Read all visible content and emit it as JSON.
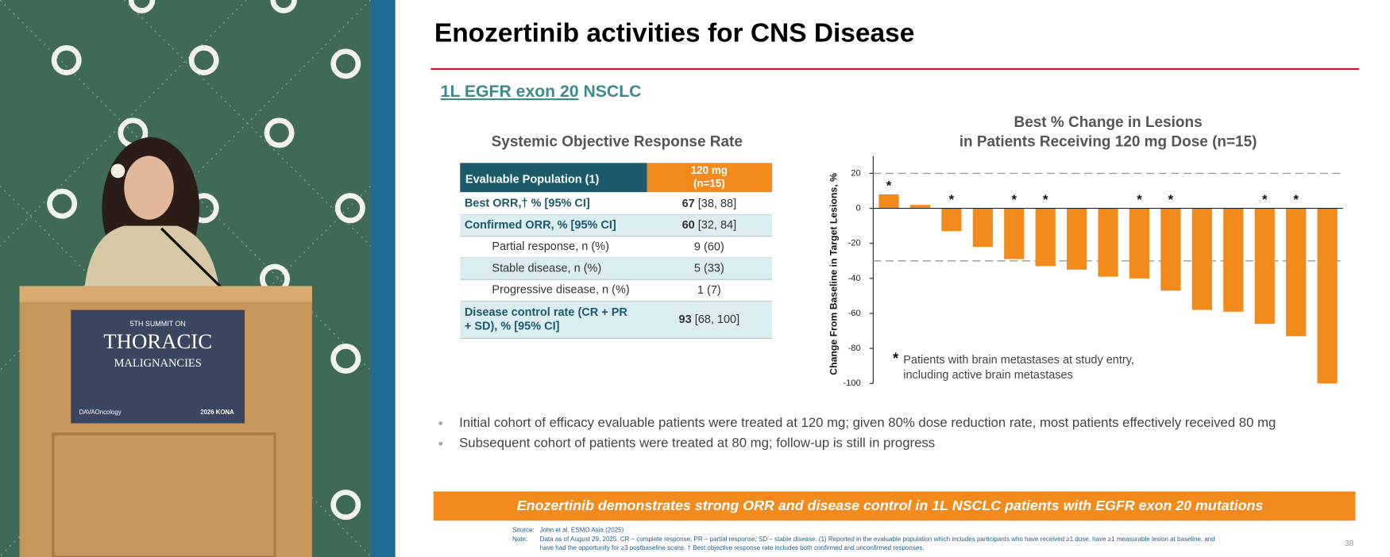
{
  "video": {
    "podium_sign": [
      "5TH SUMMIT ON",
      "THORACIC",
      "MALIGNANCIES",
      "DAVAOncology",
      "2026 KONA"
    ]
  },
  "slide": {
    "title": "Enozertinib activities for CNS Disease",
    "subtitle_link": "1L EGFR exon 20",
    "subtitle_rest": " NSCLC",
    "table": {
      "title": "Systemic Objective Response Rate",
      "header": [
        "Evaluable Population (1)",
        "120 mg",
        "(n=15)"
      ],
      "rows": [
        {
          "label": "Best ORR,† % [95% CI]",
          "value": "67",
          "ci": " [38, 88]"
        },
        {
          "label": "Confirmed ORR, % [95% CI]",
          "value": "60",
          "ci": " [32, 84]"
        },
        {
          "label": "Partial response, n (%)",
          "value": "9 (60)"
        },
        {
          "label": "Stable disease, n (%)",
          "value": "5 (33)"
        },
        {
          "label": "Progressive disease, n (%)",
          "value": "1 (7)"
        },
        {
          "label": "Disease control rate (CR + PR",
          "label2": "+ SD), % [95% CI]",
          "value": "93",
          "ci": " [68, 100]"
        }
      ]
    },
    "bullets": [
      "Initial cohort of efficacy evaluable patients were treated at 120 mg; given 80% dose reduction rate, most patients effectively received 80 mg",
      "Subsequent cohort of patients were treated at 80 mg; follow-up is still in progress"
    ],
    "banner": "Enozertinib demonstrates strong ORR and disease control in 1L NSCLC patients with EGFR exon 20 mutations",
    "footnotes": [
      [
        "Source:",
        "John et al. ESMO Asia (2025)"
      ],
      [
        "Note:",
        "Data as of August 29, 2025. CR – complete response; PR – partial response; SD – stable disease.  (1)  Reported in the evaluable population which includes participants who have received ≥1 dose, have ≥1 measurable lesion at baseline, and"
      ],
      [
        "",
        "have had the opportunity for ≥3 postbaseline scans.  †  Best objective response rate includes both confirmed and unconfirmed responses."
      ]
    ],
    "page_number": "38"
  },
  "chart_data": {
    "type": "bar",
    "title": [
      "Best % Change in Lesions",
      "in Patients Receiving 120 mg Dose (n=15)"
    ],
    "y_label": "Change From Baseline in Target Lesions, %",
    "values": [
      8,
      2,
      -13,
      -22,
      -29,
      -33,
      -35,
      -39,
      -40,
      -47,
      -58,
      -59,
      -66,
      -73,
      -100
    ],
    "color": "#f28a1c",
    "ylim": [
      -100,
      30
    ],
    "yticks": [
      20,
      0,
      -20,
      -40,
      -60,
      -80,
      -100
    ],
    "reference_lines": [
      20,
      -30
    ],
    "marker_symbol": "*",
    "marked": [
      true,
      false,
      true,
      false,
      true,
      true,
      false,
      false,
      true,
      true,
      false,
      false,
      true,
      true,
      false
    ],
    "note": [
      "Patients with brain metastases at study entry,",
      "including active brain metastases"
    ]
  }
}
